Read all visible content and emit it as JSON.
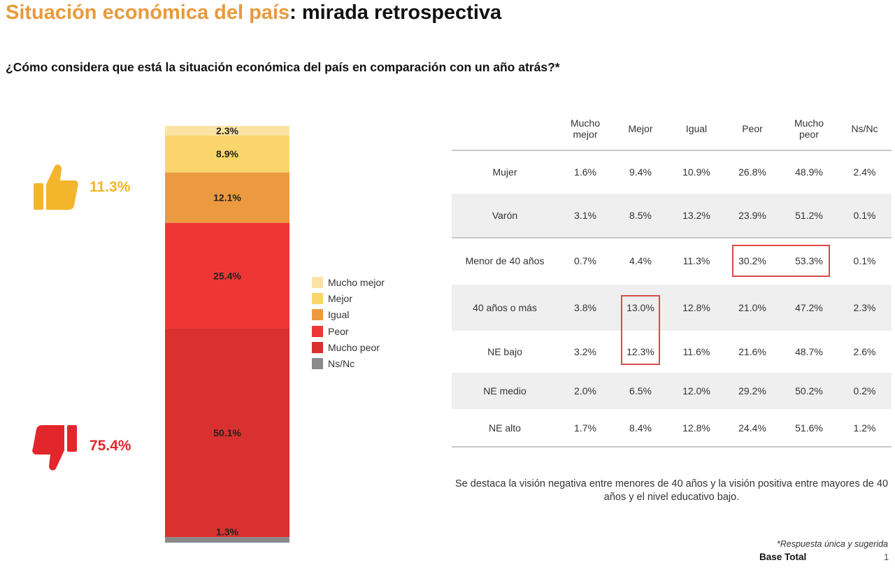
{
  "header": {
    "title_part1": "Situación económica del país",
    "title_part2": ": mirada retrospectiva",
    "question": "¿Cómo considera que está la situación económica del país en comparación con un año atrás?*"
  },
  "summary": {
    "positive": "11.3%",
    "negative": "75.4%",
    "positive_color": "#F2B52B",
    "negative_color": "#E3262C",
    "positive_icon": "thumbs-up-icon",
    "negative_icon": "thumbs-down-icon"
  },
  "chart_data": {
    "type": "bar",
    "stacked": true,
    "orientation": "vertical",
    "series": [
      {
        "name": "Mucho mejor",
        "value": 2.3,
        "label": "2.3%",
        "color": "#FBE3A3"
      },
      {
        "name": "Mejor",
        "value": 8.9,
        "label": "8.9%",
        "color": "#FAD56B"
      },
      {
        "name": "Igual",
        "value": 12.1,
        "label": "12.1%",
        "color": "#EC9A40"
      },
      {
        "name": "Peor",
        "value": 25.4,
        "label": "25.4%",
        "color": "#EE3735"
      },
      {
        "name": "Mucho peor",
        "value": 50.1,
        "label": "50.1%",
        "color": "#D8312F"
      },
      {
        "name": "Ns/Nc",
        "value": 1.3,
        "label": "1.3%",
        "color": "#8A8A8A"
      }
    ],
    "ylim": [
      0,
      100
    ],
    "legend_position": "right"
  },
  "table": {
    "columns": [
      "",
      "Mucho\nmejor",
      "Mejor",
      "Igual",
      "Peor",
      "Mucho\npeor",
      "Ns/Nc"
    ],
    "rows": [
      {
        "label": "Mujer",
        "values": [
          "1.6%",
          "9.4%",
          "10.9%",
          "26.8%",
          "48.9%",
          "2.4%"
        ]
      },
      {
        "label": "Varón",
        "values": [
          "3.1%",
          "8.5%",
          "13.2%",
          "23.9%",
          "51.2%",
          "0.1%"
        ]
      },
      {
        "label": "Menor de 40 años",
        "values": [
          "0.7%",
          "4.4%",
          "11.3%",
          "30.2%",
          "53.3%",
          "0.1%"
        ]
      },
      {
        "label": "40 años o más",
        "values": [
          "3.8%",
          "13.0%",
          "12.8%",
          "21.0%",
          "47.2%",
          "2.3%"
        ]
      },
      {
        "label": "NE bajo",
        "values": [
          "3.2%",
          "12.3%",
          "11.6%",
          "21.6%",
          "48.7%",
          "2.6%"
        ]
      },
      {
        "label": "NE medio",
        "values": [
          "2.0%",
          "6.5%",
          "12.0%",
          "29.2%",
          "50.2%",
          "0.2%"
        ]
      },
      {
        "label": "NE alto",
        "values": [
          "1.7%",
          "8.4%",
          "12.8%",
          "24.4%",
          "51.6%",
          "1.2%"
        ]
      }
    ],
    "highlight_color": "#D94A4A"
  },
  "note": "Se destaca la visión negativa entre menores de 40 años y la visión positiva entre mayores de 40 años y el nivel educativo bajo.",
  "footer": {
    "respuesta": "*Respuesta única y sugerida",
    "base": "Base Total",
    "page": "1"
  }
}
